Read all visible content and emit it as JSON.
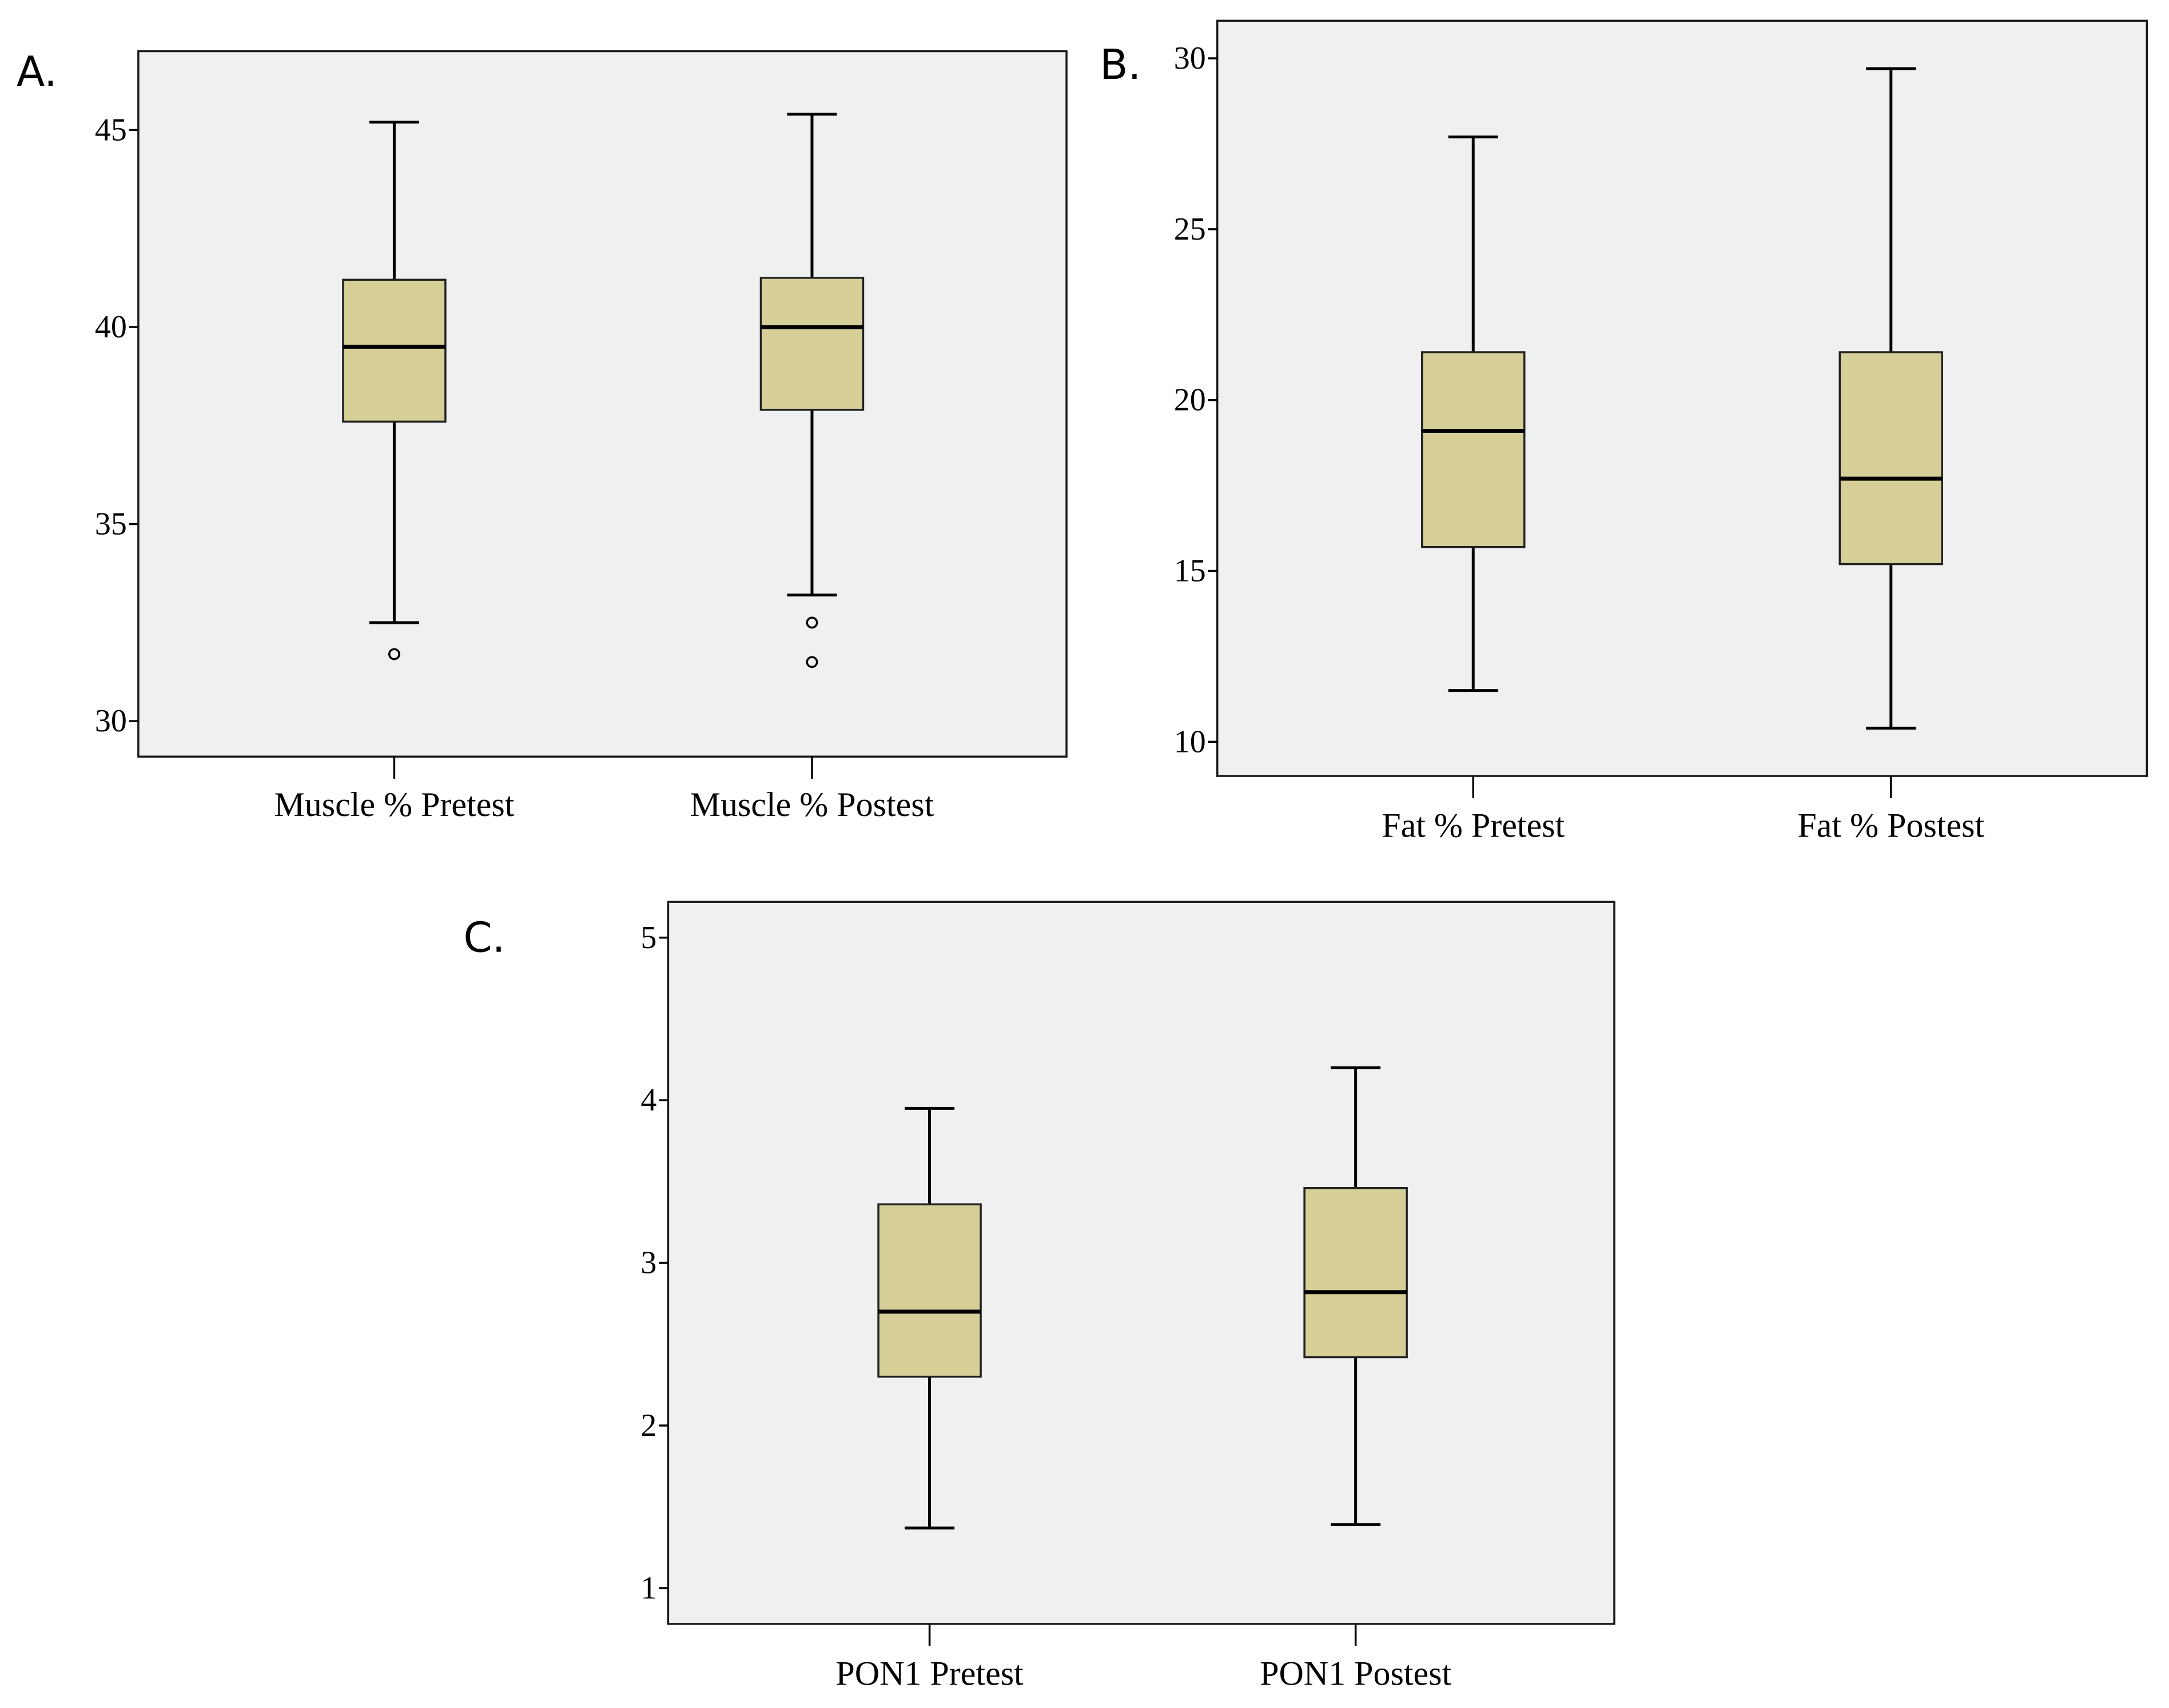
{
  "chart_data": [
    {
      "type": "boxplot",
      "panel": "A.",
      "title": "",
      "xlabel": "",
      "ylabel": "",
      "ylim": [
        29.1,
        47
      ],
      "yticks": [
        30,
        35,
        40,
        45
      ],
      "box_color": "#d6cf98",
      "background_color": "#f0f0f0",
      "categories": [
        "Muscle % Pretest",
        "Muscle % Postest"
      ],
      "boxes": [
        {
          "name": "Muscle % Pretest",
          "whisker_low": 32.5,
          "q1": 37.6,
          "median": 39.5,
          "q3": 41.2,
          "whisker_high": 45.2,
          "outliers": [
            31.7
          ]
        },
        {
          "name": "Muscle % Postest",
          "whisker_low": 33.2,
          "q1": 37.9,
          "median": 40.0,
          "q3": 41.25,
          "whisker_high": 45.4,
          "outliers": [
            32.5,
            31.5
          ]
        }
      ]
    },
    {
      "type": "boxplot",
      "panel": "B.",
      "title": "",
      "xlabel": "",
      "ylabel": "",
      "ylim": [
        9.0,
        31.1
      ],
      "yticks": [
        10,
        15,
        20,
        25,
        30
      ],
      "box_color": "#d6cf98",
      "background_color": "#f0f0f0",
      "categories": [
        "Fat % Pretest",
        "Fat % Postest"
      ],
      "boxes": [
        {
          "name": "Fat % Pretest",
          "whisker_low": 11.5,
          "q1": 15.7,
          "median": 19.1,
          "q3": 21.4,
          "whisker_high": 27.7,
          "outliers": []
        },
        {
          "name": "Fat % Postest",
          "whisker_low": 10.4,
          "q1": 15.2,
          "median": 17.7,
          "q3": 21.4,
          "whisker_high": 29.7,
          "outliers": []
        }
      ]
    },
    {
      "type": "boxplot",
      "panel": "C.",
      "title": "",
      "xlabel": "",
      "ylabel": "",
      "ylim": [
        0.78,
        5.22
      ],
      "yticks": [
        1,
        2,
        3,
        4,
        5
      ],
      "box_color": "#d6cf98",
      "background_color": "#f0f0f0",
      "categories": [
        "PON1 Pretest",
        "PON1 Postest"
      ],
      "boxes": [
        {
          "name": "PON1 Pretest",
          "whisker_low": 1.37,
          "q1": 2.3,
          "median": 2.7,
          "q3": 3.36,
          "whisker_high": 3.95,
          "outliers": []
        },
        {
          "name": "PON1 Postest",
          "whisker_low": 1.39,
          "q1": 2.42,
          "median": 2.82,
          "q3": 3.46,
          "whisker_high": 4.2,
          "outliers": []
        }
      ]
    }
  ]
}
